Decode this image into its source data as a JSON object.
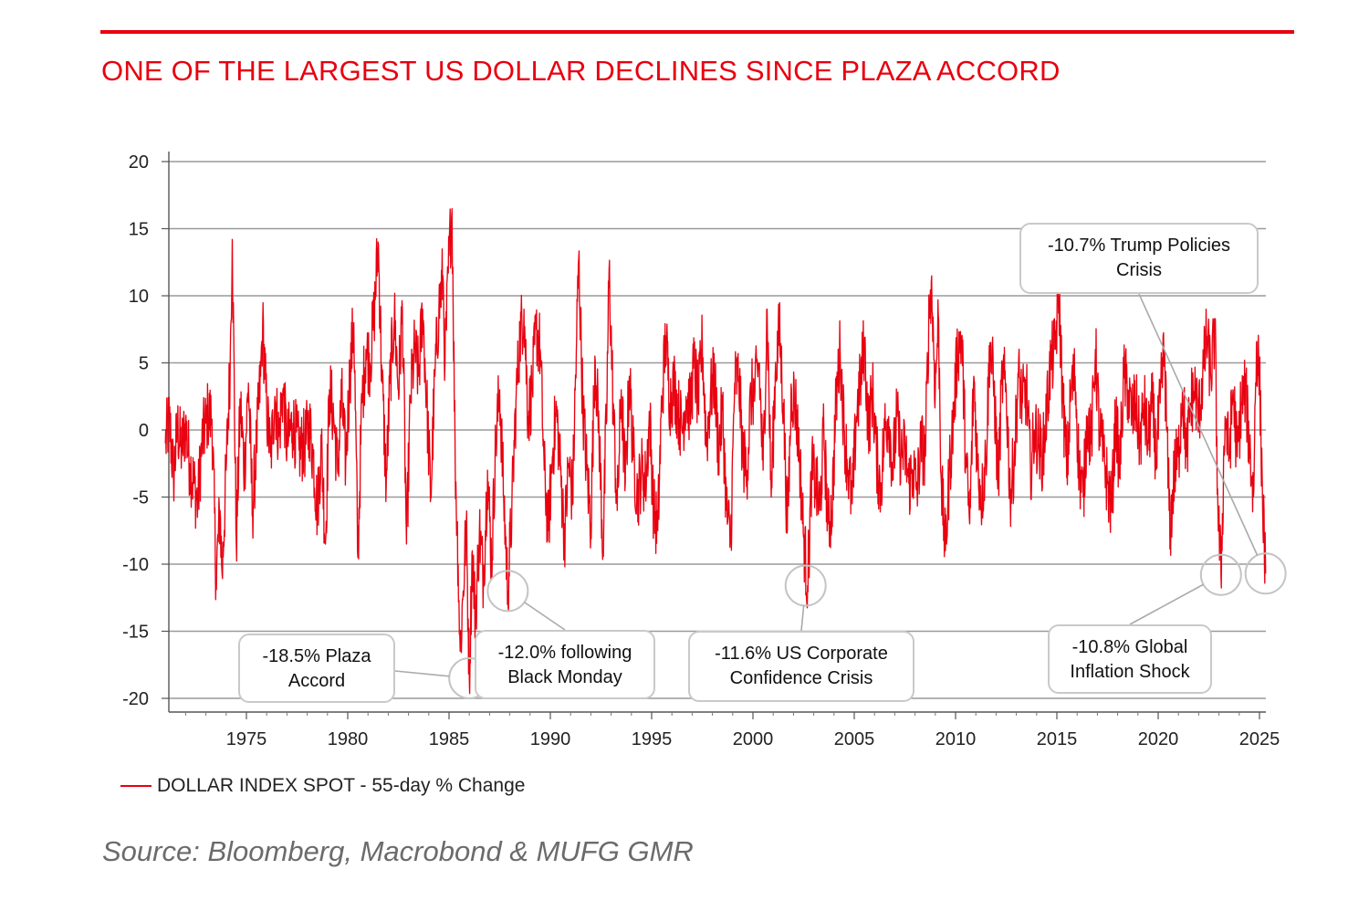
{
  "chart_data": {
    "type": "line",
    "title": "ONE OF THE LARGEST US DOLLAR DECLINES SINCE PLAZA ACCORD",
    "source": "Source: Bloomberg, Macrobond & MUFG GMR",
    "xlim": [
      1971,
      2025.4
    ],
    "ylim": [
      -21,
      20
    ],
    "x_ticks": [
      1975,
      1980,
      1985,
      1990,
      1995,
      2000,
      2005,
      2010,
      2015,
      2020,
      2025
    ],
    "y_ticks": [
      20,
      15,
      10,
      5,
      0,
      -5,
      -10,
      -15,
      -20
    ],
    "y_tick_labels": [
      "20",
      "15",
      "10",
      "5",
      "0",
      "-5",
      "-10",
      "-15",
      "-20"
    ],
    "grid": "horizontal",
    "legend_position": "bottom-left",
    "series": [
      {
        "name": "DOLLAR INDEX SPOT - 55-day % Change",
        "color": "#e8000f",
        "points": [
          [
            1971.0,
            -1.0
          ],
          [
            1971.2,
            0.8
          ],
          [
            1971.4,
            -3.5
          ],
          [
            1971.6,
            0.2
          ],
          [
            1971.8,
            -1.5
          ],
          [
            1972.0,
            0.3
          ],
          [
            1972.2,
            -2.5
          ],
          [
            1972.4,
            -4.0
          ],
          [
            1972.6,
            -5.5
          ],
          [
            1972.8,
            -1.0
          ],
          [
            1973.0,
            0.5
          ],
          [
            1973.1,
            1.2
          ],
          [
            1973.3,
            0.8
          ],
          [
            1973.5,
            -11.0
          ],
          [
            1973.7,
            -6.0
          ],
          [
            1973.8,
            -10.8
          ],
          [
            1974.0,
            -3.0
          ],
          [
            1974.2,
            5.0
          ],
          [
            1974.3,
            14.2
          ],
          [
            1974.5,
            -8.5
          ],
          [
            1974.7,
            2.0
          ],
          [
            1974.9,
            -3.0
          ],
          [
            1975.1,
            3.5
          ],
          [
            1975.3,
            -6.0
          ],
          [
            1975.5,
            -1.0
          ],
          [
            1975.7,
            4.0
          ],
          [
            1975.8,
            7.8
          ],
          [
            1976.0,
            1.5
          ],
          [
            1976.2,
            -2.0
          ],
          [
            1976.4,
            2.5
          ],
          [
            1976.6,
            -0.5
          ],
          [
            1976.8,
            3.0
          ],
          [
            1977.0,
            -1.0
          ],
          [
            1977.3,
            0.5
          ],
          [
            1977.6,
            -1.5
          ],
          [
            1977.9,
            -1.0
          ],
          [
            1978.1,
            0.5
          ],
          [
            1978.3,
            -2.0
          ],
          [
            1978.5,
            -6.0
          ],
          [
            1978.7,
            -1.0
          ],
          [
            1978.9,
            -8.5
          ],
          [
            1979.1,
            3.0
          ],
          [
            1979.3,
            1.0
          ],
          [
            1979.5,
            -3.0
          ],
          [
            1979.7,
            2.5
          ],
          [
            1979.9,
            -2.5
          ],
          [
            1980.1,
            4.0
          ],
          [
            1980.3,
            8.0
          ],
          [
            1980.5,
            -9.5
          ],
          [
            1980.7,
            2.0
          ],
          [
            1980.9,
            6.0
          ],
          [
            1981.1,
            5.0
          ],
          [
            1981.3,
            8.5
          ],
          [
            1981.5,
            14.0
          ],
          [
            1981.7,
            3.5
          ],
          [
            1981.9,
            -4.0
          ],
          [
            1982.1,
            4.0
          ],
          [
            1982.3,
            8.5
          ],
          [
            1982.5,
            3.0
          ],
          [
            1982.7,
            9.0
          ],
          [
            1982.9,
            -8.5
          ],
          [
            1983.1,
            2.5
          ],
          [
            1983.3,
            6.0
          ],
          [
            1983.5,
            4.0
          ],
          [
            1983.7,
            9.0
          ],
          [
            1983.9,
            2.0
          ],
          [
            1984.1,
            -5.0
          ],
          [
            1984.3,
            4.0
          ],
          [
            1984.5,
            9.0
          ],
          [
            1984.7,
            11.5
          ],
          [
            1984.8,
            5.0
          ],
          [
            1985.0,
            13.0
          ],
          [
            1985.15,
            16.5
          ],
          [
            1985.3,
            -2.0
          ],
          [
            1985.45,
            -10.0
          ],
          [
            1985.55,
            -16.5
          ],
          [
            1985.7,
            -12.0
          ],
          [
            1985.85,
            -7.0
          ],
          [
            1986.0,
            -18.5
          ],
          [
            1986.15,
            -9.0
          ],
          [
            1986.3,
            -14.0
          ],
          [
            1986.5,
            -7.5
          ],
          [
            1986.7,
            -11.0
          ],
          [
            1986.9,
            -3.0
          ],
          [
            1987.1,
            -10.0
          ],
          [
            1987.3,
            -1.0
          ],
          [
            1987.5,
            3.0
          ],
          [
            1987.7,
            -5.0
          ],
          [
            1987.9,
            -12.0
          ],
          [
            1988.1,
            -6.0
          ],
          [
            1988.3,
            2.0
          ],
          [
            1988.5,
            7.0
          ],
          [
            1988.7,
            9.0
          ],
          [
            1988.9,
            1.0
          ],
          [
            1989.1,
            3.0
          ],
          [
            1989.3,
            7.5
          ],
          [
            1989.5,
            6.0
          ],
          [
            1989.7,
            -3.0
          ],
          [
            1989.9,
            -7.5
          ],
          [
            1990.1,
            -2.0
          ],
          [
            1990.3,
            1.5
          ],
          [
            1990.5,
            -3.0
          ],
          [
            1990.7,
            -8.0
          ],
          [
            1990.9,
            -2.5
          ],
          [
            1991.1,
            -5.0
          ],
          [
            1991.3,
            7.0
          ],
          [
            1991.4,
            12.8
          ],
          [
            1991.6,
            2.0
          ],
          [
            1991.8,
            -3.0
          ],
          [
            1992.0,
            -7.0
          ],
          [
            1992.2,
            5.5
          ],
          [
            1992.4,
            0.0
          ],
          [
            1992.6,
            -9.0
          ],
          [
            1992.8,
            3.0
          ],
          [
            1992.9,
            12.0
          ],
          [
            1993.1,
            2.0
          ],
          [
            1993.3,
            -6.0
          ],
          [
            1993.5,
            3.0
          ],
          [
            1993.7,
            -4.0
          ],
          [
            1993.9,
            4.0
          ],
          [
            1994.1,
            -2.0
          ],
          [
            1994.3,
            -5.0
          ],
          [
            1994.5,
            -3.0
          ],
          [
            1994.7,
            -4.0
          ],
          [
            1994.9,
            1.0
          ],
          [
            1995.1,
            -6.0
          ],
          [
            1995.3,
            -7.5
          ],
          [
            1995.5,
            2.0
          ],
          [
            1995.7,
            7.0
          ],
          [
            1995.9,
            2.0
          ],
          [
            1996.1,
            3.5
          ],
          [
            1996.3,
            1.5
          ],
          [
            1996.5,
            0.0
          ],
          [
            1996.7,
            2.5
          ],
          [
            1996.9,
            1.5
          ],
          [
            1997.1,
            5.0
          ],
          [
            1997.3,
            2.0
          ],
          [
            1997.5,
            6.5
          ],
          [
            1997.7,
            -1.0
          ],
          [
            1997.9,
            2.5
          ],
          [
            1998.1,
            4.0
          ],
          [
            1998.3,
            -1.5
          ],
          [
            1998.5,
            1.5
          ],
          [
            1998.7,
            -6.0
          ],
          [
            1998.9,
            -8.5
          ],
          [
            1999.1,
            3.5
          ],
          [
            1999.3,
            4.0
          ],
          [
            1999.5,
            -2.0
          ],
          [
            1999.7,
            -3.0
          ],
          [
            1999.9,
            2.5
          ],
          [
            2000.1,
            3.0
          ],
          [
            2000.3,
            5.0
          ],
          [
            2000.5,
            -3.0
          ],
          [
            2000.7,
            9.0
          ],
          [
            2000.9,
            -5.0
          ],
          [
            2001.1,
            4.0
          ],
          [
            2001.3,
            7.5
          ],
          [
            2001.5,
            2.0
          ],
          [
            2001.7,
            -7.5
          ],
          [
            2001.9,
            3.0
          ],
          [
            2002.1,
            2.0
          ],
          [
            2002.3,
            -2.0
          ],
          [
            2002.5,
            -8.0
          ],
          [
            2002.7,
            -11.6
          ],
          [
            2002.9,
            -3.0
          ],
          [
            2003.1,
            -4.0
          ],
          [
            2003.3,
            -6.0
          ],
          [
            2003.5,
            0.0
          ],
          [
            2003.7,
            -7.0
          ],
          [
            2003.9,
            -6.0
          ],
          [
            2004.1,
            2.0
          ],
          [
            2004.3,
            6.0
          ],
          [
            2004.5,
            0.0
          ],
          [
            2004.7,
            -3.0
          ],
          [
            2004.9,
            -5.5
          ],
          [
            2005.1,
            1.0
          ],
          [
            2005.3,
            3.5
          ],
          [
            2005.5,
            6.5
          ],
          [
            2005.7,
            0.0
          ],
          [
            2005.9,
            3.0
          ],
          [
            2006.1,
            -2.0
          ],
          [
            2006.3,
            -4.5
          ],
          [
            2006.5,
            0.0
          ],
          [
            2006.7,
            1.0
          ],
          [
            2006.9,
            -3.0
          ],
          [
            2007.1,
            1.0
          ],
          [
            2007.3,
            -2.0
          ],
          [
            2007.5,
            -1.5
          ],
          [
            2007.7,
            -4.0
          ],
          [
            2007.9,
            -3.0
          ],
          [
            2008.1,
            -4.5
          ],
          [
            2008.3,
            -1.0
          ],
          [
            2008.5,
            -2.0
          ],
          [
            2008.7,
            9.0
          ],
          [
            2008.8,
            11.0
          ],
          [
            2009.0,
            3.0
          ],
          [
            2009.15,
            8.5
          ],
          [
            2009.3,
            -4.0
          ],
          [
            2009.5,
            -9.0
          ],
          [
            2009.7,
            -3.0
          ],
          [
            2009.9,
            1.0
          ],
          [
            2010.1,
            6.0
          ],
          [
            2010.3,
            7.0
          ],
          [
            2010.5,
            -2.0
          ],
          [
            2010.7,
            -7.0
          ],
          [
            2010.9,
            4.0
          ],
          [
            2011.1,
            -3.0
          ],
          [
            2011.3,
            -5.0
          ],
          [
            2011.5,
            -2.0
          ],
          [
            2011.7,
            6.5
          ],
          [
            2011.9,
            3.0
          ],
          [
            2012.1,
            -4.0
          ],
          [
            2012.3,
            4.0
          ],
          [
            2012.5,
            3.0
          ],
          [
            2012.7,
            -5.0
          ],
          [
            2012.9,
            -2.0
          ],
          [
            2013.1,
            4.0
          ],
          [
            2013.3,
            2.0
          ],
          [
            2013.5,
            3.0
          ],
          [
            2013.7,
            -3.0
          ],
          [
            2013.9,
            0.0
          ],
          [
            2014.1,
            -1.0
          ],
          [
            2014.3,
            -2.0
          ],
          [
            2014.5,
            1.5
          ],
          [
            2014.7,
            5.0
          ],
          [
            2014.9,
            6.0
          ],
          [
            2015.1,
            10.0
          ],
          [
            2015.3,
            2.0
          ],
          [
            2015.5,
            -3.0
          ],
          [
            2015.7,
            3.0
          ],
          [
            2015.9,
            4.0
          ],
          [
            2016.1,
            -3.0
          ],
          [
            2016.3,
            -5.0
          ],
          [
            2016.5,
            1.0
          ],
          [
            2016.7,
            -1.0
          ],
          [
            2016.9,
            6.0
          ],
          [
            2017.1,
            0.0
          ],
          [
            2017.3,
            -2.0
          ],
          [
            2017.5,
            -4.0
          ],
          [
            2017.7,
            -6.0
          ],
          [
            2017.9,
            1.0
          ],
          [
            2018.1,
            -3.0
          ],
          [
            2018.3,
            4.0
          ],
          [
            2018.5,
            3.0
          ],
          [
            2018.7,
            1.0
          ],
          [
            2018.9,
            2.0
          ],
          [
            2019.1,
            -1.0
          ],
          [
            2019.3,
            2.0
          ],
          [
            2019.5,
            -1.0
          ],
          [
            2019.7,
            2.0
          ],
          [
            2019.9,
            -2.0
          ],
          [
            2020.1,
            2.0
          ],
          [
            2020.3,
            6.0
          ],
          [
            2020.5,
            -4.0
          ],
          [
            2020.6,
            -7.5
          ],
          [
            2020.8,
            -3.0
          ],
          [
            2021.0,
            -2.0
          ],
          [
            2021.2,
            3.0
          ],
          [
            2021.4,
            -2.0
          ],
          [
            2021.6,
            2.0
          ],
          [
            2021.8,
            3.0
          ],
          [
            2022.0,
            1.0
          ],
          [
            2022.2,
            4.0
          ],
          [
            2022.4,
            7.0
          ],
          [
            2022.6,
            4.0
          ],
          [
            2022.8,
            7.5
          ],
          [
            2022.95,
            -6.0
          ],
          [
            2023.1,
            -10.8
          ],
          [
            2023.3,
            1.0
          ],
          [
            2023.5,
            -2.0
          ],
          [
            2023.7,
            3.0
          ],
          [
            2023.9,
            -2.0
          ],
          [
            2024.1,
            2.0
          ],
          [
            2024.3,
            3.0
          ],
          [
            2024.5,
            -1.0
          ],
          [
            2024.7,
            -5.0
          ],
          [
            2024.85,
            6.5
          ],
          [
            2025.0,
            4.0
          ],
          [
            2025.15,
            -5.0
          ],
          [
            2025.3,
            -10.7
          ]
        ]
      }
    ],
    "annotations": [
      {
        "lines": [
          "-18.5% Plaza",
          "Accord"
        ],
        "x": 1986.0,
        "y": -18.5
      },
      {
        "lines": [
          "-12.0% following",
          "Black Monday"
        ],
        "x": 1987.9,
        "y": -12.0
      },
      {
        "lines": [
          "-11.6% US Corporate",
          "Confidence Crisis"
        ],
        "x": 2002.6,
        "y": -11.6
      },
      {
        "lines": [
          "-10.8% Global",
          "Inflation Shock"
        ],
        "x": 2023.1,
        "y": -10.8
      },
      {
        "lines": [
          "-10.7% Trump Policies",
          "Crisis"
        ],
        "x": 2025.3,
        "y": -10.7
      }
    ]
  }
}
